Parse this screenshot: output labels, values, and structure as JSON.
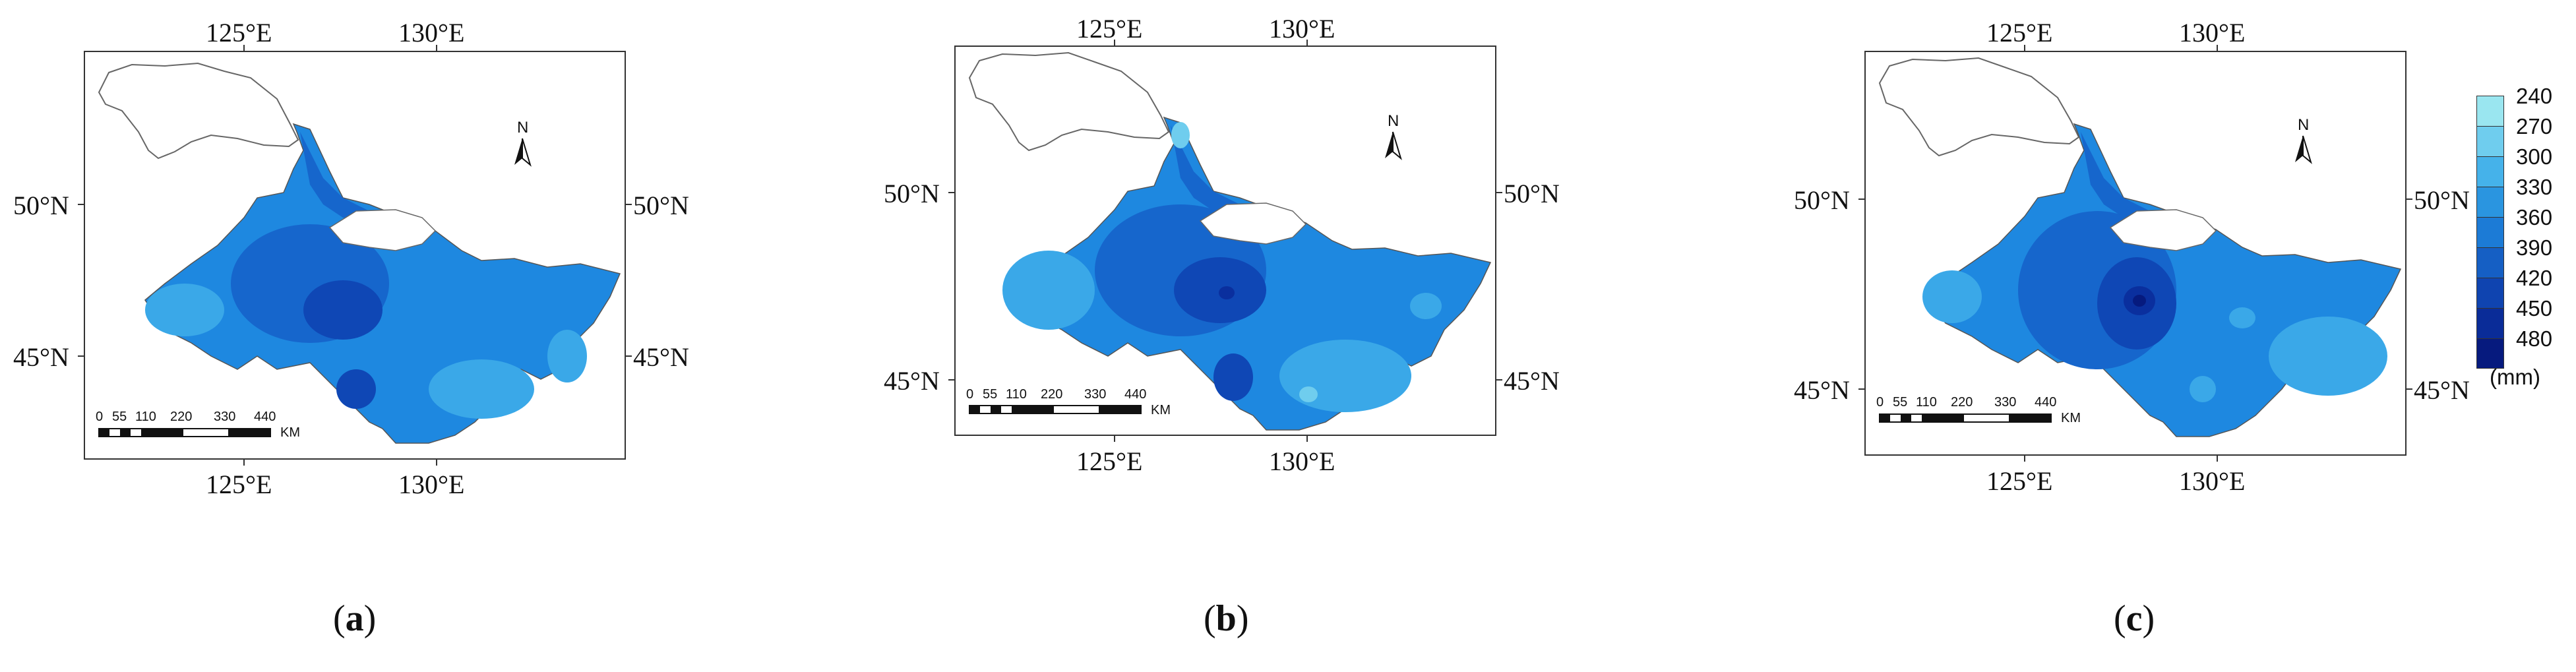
{
  "panels": [
    {
      "id": "a",
      "caption": "a",
      "top_lon_labels": [
        "125°E",
        "130°E"
      ],
      "bottom_lon_labels": [
        "125°E",
        "130°E"
      ],
      "left_lat_labels": [
        "50°N",
        "45°N"
      ],
      "right_lat_labels": [
        "50°N",
        "45°N"
      ],
      "north_label": "N",
      "scale_labels": [
        "0",
        "55",
        "110",
        "220",
        "330",
        "440"
      ],
      "scale_unit": "KM",
      "zones": [
        {
          "level": "330-360",
          "color": "#1e88e0"
        },
        {
          "level": "360-390",
          "color": "#1666cc"
        },
        {
          "level": "390-420",
          "color": "#0f47b5"
        },
        {
          "level": "300-330",
          "color": "#3aa8e8"
        }
      ]
    },
    {
      "id": "b",
      "caption": "b",
      "top_lon_labels": [
        "125°E",
        "130°E"
      ],
      "bottom_lon_labels": [
        "125°E",
        "130°E"
      ],
      "left_lat_labels": [
        "50°N",
        "45°N"
      ],
      "right_lat_labels": [
        "50°N",
        "45°N"
      ],
      "north_label": "N",
      "scale_labels": [
        "0",
        "55",
        "110",
        "220",
        "330",
        "440"
      ],
      "scale_unit": "KM",
      "zones": [
        {
          "level": "300-330",
          "color": "#3aa8e8"
        },
        {
          "level": "330-360",
          "color": "#1e88e0"
        },
        {
          "level": "360-390",
          "color": "#1666cc"
        },
        {
          "level": "390-420",
          "color": "#0f47b5"
        },
        {
          "level": "420-450",
          "color": "#0a2f9e"
        }
      ]
    },
    {
      "id": "c",
      "caption": "c",
      "top_lon_labels": [
        "125°E",
        "130°E"
      ],
      "bottom_lon_labels": [
        "125°E",
        "130°E"
      ],
      "left_lat_labels": [
        "50°N",
        "45°N"
      ],
      "right_lat_labels": [
        "50°N",
        "45°N"
      ],
      "north_label": "N",
      "scale_labels": [
        "0",
        "55",
        "110",
        "220",
        "330",
        "440"
      ],
      "scale_unit": "KM",
      "zones": [
        {
          "level": "330-360",
          "color": "#1e88e0"
        },
        {
          "level": "360-390",
          "color": "#1666cc"
        },
        {
          "level": "390-420",
          "color": "#0f47b5"
        },
        {
          "level": "420-450",
          "color": "#0a2f9e"
        },
        {
          "level": "300-330",
          "color": "#3aa8e8"
        }
      ]
    }
  ],
  "legend": {
    "values": [
      "240",
      "270",
      "300",
      "330",
      "360",
      "390",
      "420",
      "450",
      "480"
    ],
    "colors": [
      "#9ae6f0",
      "#6fcdee",
      "#45b2ea",
      "#2a95e0",
      "#1c7bd6",
      "#155fc4",
      "#0f44b0",
      "#0a2c98",
      "#061a7e"
    ],
    "unit": "(mm)"
  },
  "colors": {
    "unfilled_region": "#ffffff",
    "outline": "#555555",
    "frame": "#333333"
  }
}
